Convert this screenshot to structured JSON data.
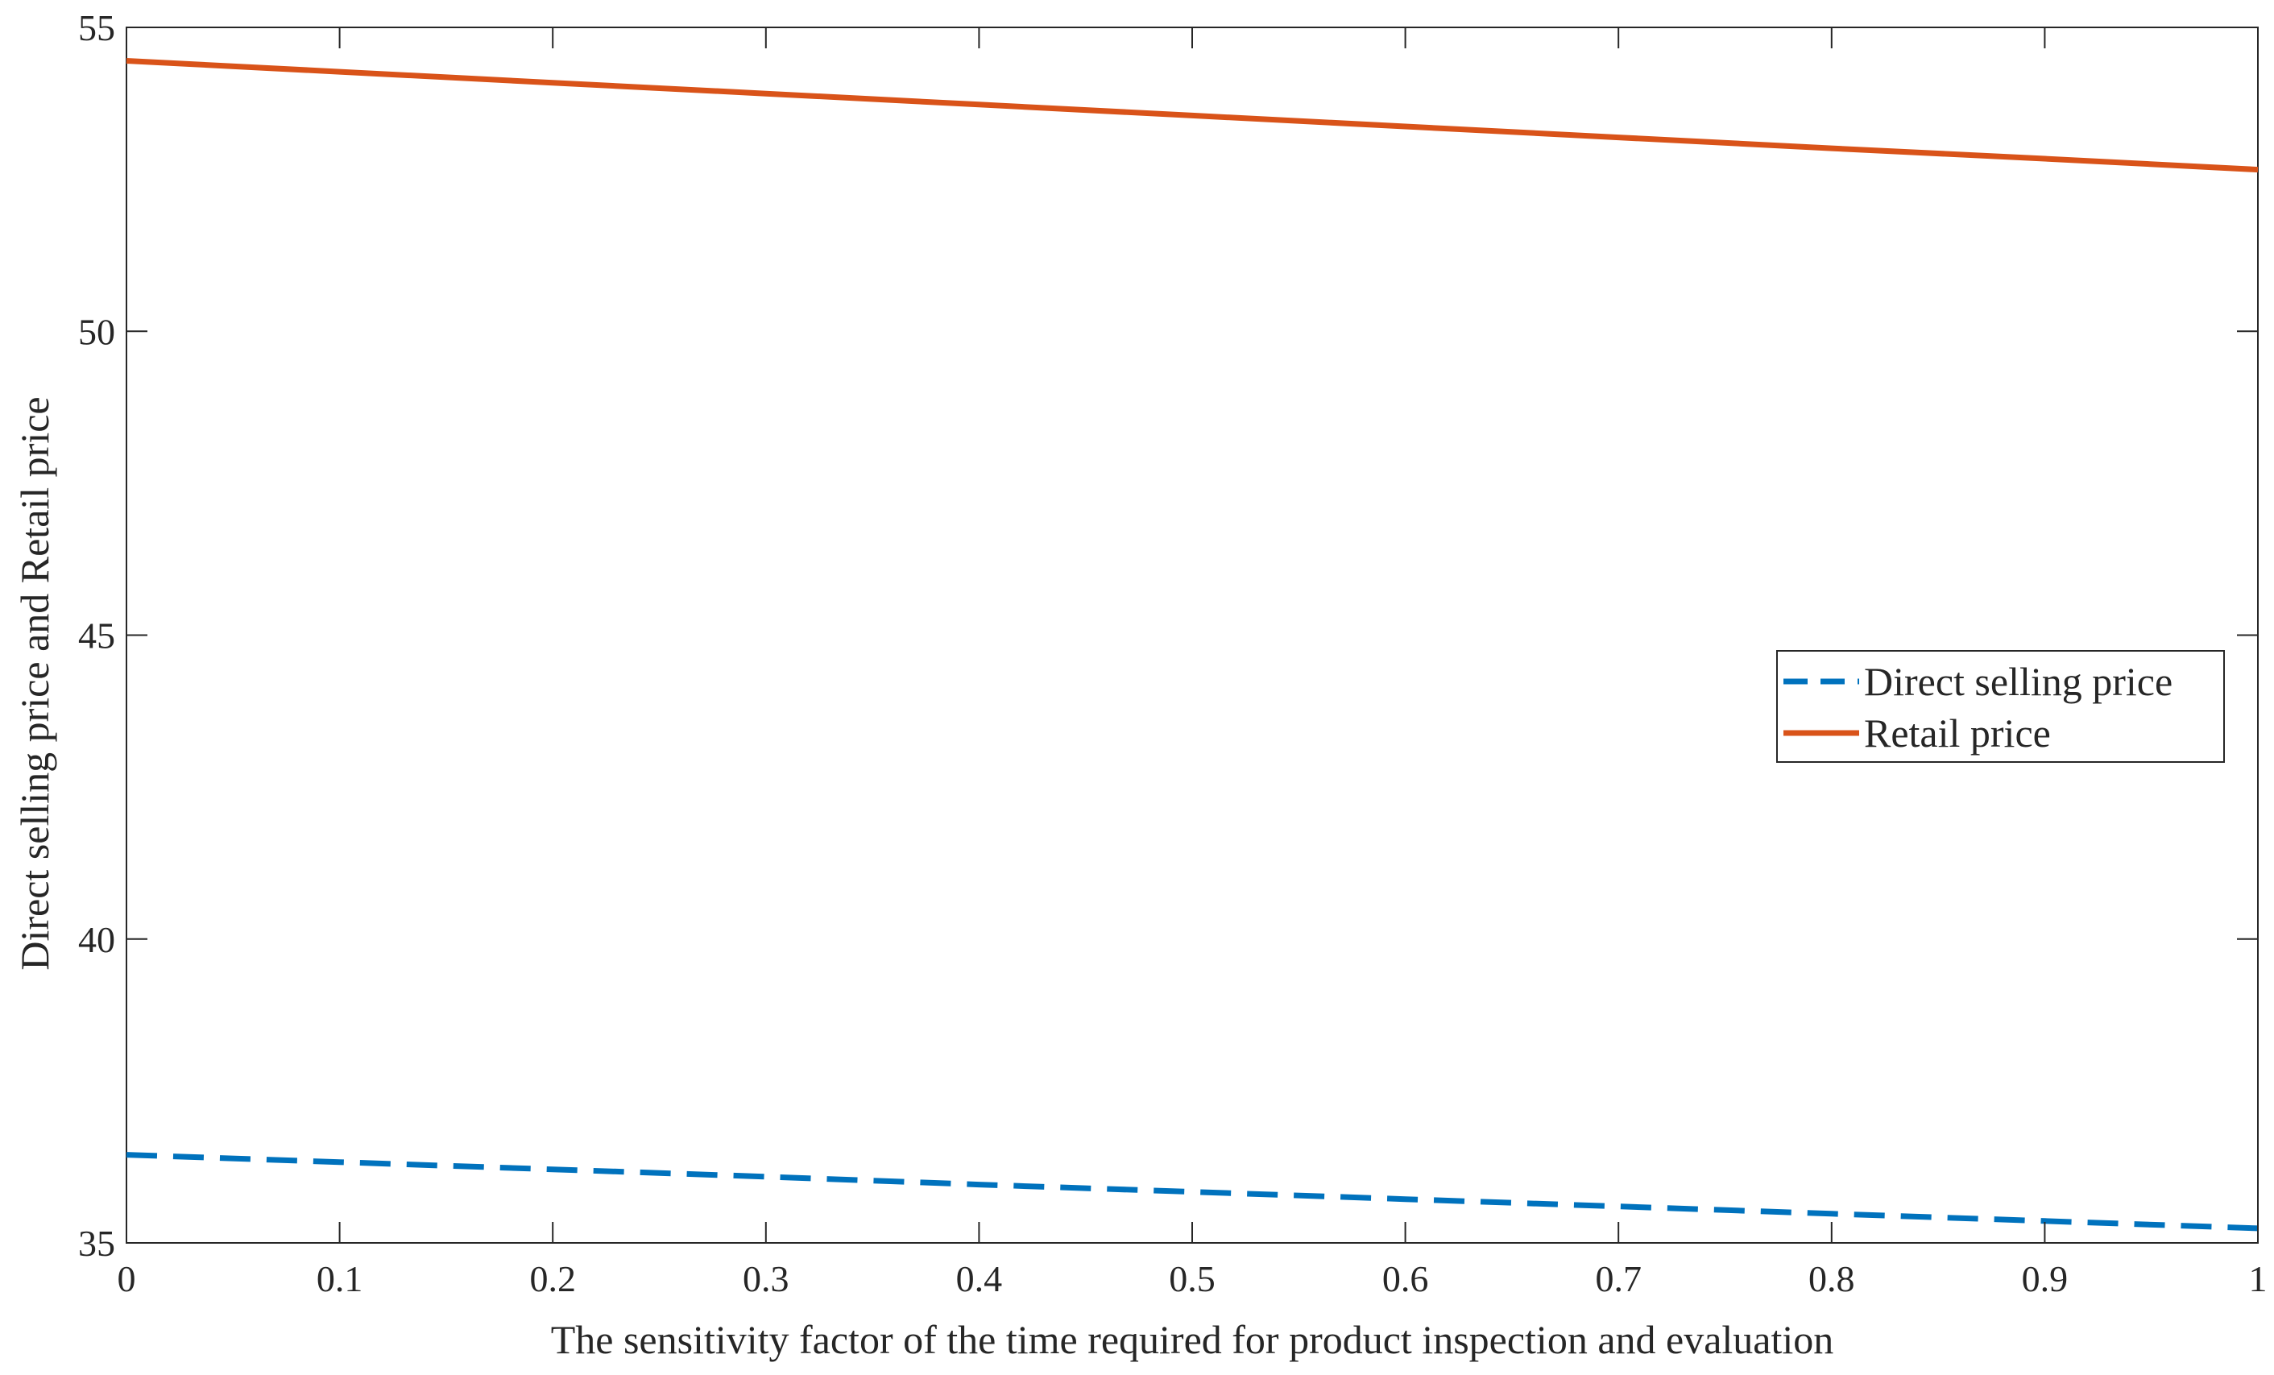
{
  "chart_data": {
    "type": "line",
    "title": "",
    "xlabel": "The sensitivity factor of the time required for product inspection and evaluation",
    "ylabel": "Direct selling price and Retail price",
    "xlim": [
      0,
      1
    ],
    "ylim": [
      35,
      55
    ],
    "xticks": [
      0,
      0.1,
      0.2,
      0.3,
      0.4,
      0.5,
      0.6,
      0.7,
      0.8,
      0.9,
      1
    ],
    "xtick_labels": [
      "0",
      "0.1",
      "0.2",
      "0.3",
      "0.4",
      "0.5",
      "0.6",
      "0.7",
      "0.8",
      "0.9",
      "1"
    ],
    "yticks": [
      35,
      40,
      45,
      50,
      55
    ],
    "ytick_labels": [
      "35",
      "40",
      "45",
      "50",
      "55"
    ],
    "grid": false,
    "legend_position": "right-center",
    "series": [
      {
        "name": "Direct selling price",
        "color": "#0072BD",
        "style": "dashed",
        "x": [
          0,
          0.1,
          0.2,
          0.3,
          0.4,
          0.5,
          0.6,
          0.7,
          0.8,
          0.9,
          1
        ],
        "y": [
          36.45,
          36.33,
          36.21,
          36.09,
          35.96,
          35.84,
          35.72,
          35.6,
          35.48,
          35.36,
          35.24
        ]
      },
      {
        "name": "Retail price",
        "color": "#D95319",
        "style": "solid",
        "x": [
          0,
          0.1,
          0.2,
          0.3,
          0.4,
          0.5,
          0.6,
          0.7,
          0.8,
          0.9,
          1
        ],
        "y": [
          54.45,
          54.27,
          54.09,
          53.91,
          53.73,
          53.55,
          53.37,
          53.19,
          53.01,
          52.84,
          52.66
        ]
      }
    ]
  }
}
